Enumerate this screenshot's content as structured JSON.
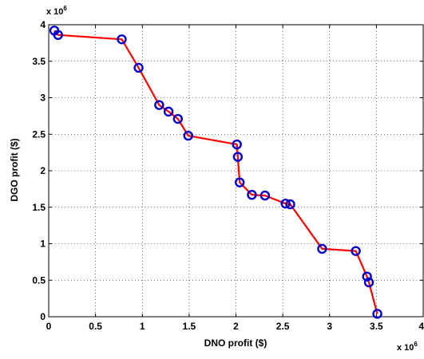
{
  "chart_data": {
    "type": "line",
    "title": "",
    "xlabel": "DNO profit ($)",
    "ylabel": "DGO profit ($)",
    "xlim": [
      0,
      4000000
    ],
    "ylim": [
      0,
      4000000
    ],
    "x_ticks": [
      0,
      500000,
      1000000,
      1500000,
      2000000,
      2500000,
      3000000,
      3500000,
      4000000
    ],
    "y_ticks": [
      0,
      500000,
      1000000,
      1500000,
      2000000,
      2500000,
      3000000,
      3500000,
      4000000
    ],
    "x_tick_labels": [
      "0",
      "0.5",
      "1",
      "1.5",
      "2",
      "2.5",
      "3",
      "3.5",
      "4"
    ],
    "y_tick_labels": [
      "0",
      "0.5",
      "1",
      "1.5",
      "2",
      "2.5",
      "3",
      "3.5",
      "4"
    ],
    "x_exponent": {
      "base": "x 10",
      "power": "6"
    },
    "y_exponent": {
      "base": "x 10",
      "power": "6"
    },
    "grid": true,
    "line_color": "#ff0000",
    "marker_color": "#0000cc",
    "series": [
      {
        "x": [
          60000,
          100000,
          780000,
          960000,
          1180000,
          1280000,
          1380000,
          1490000,
          2010000,
          2020000,
          2040000,
          2170000,
          2310000,
          2530000,
          2580000,
          2920000,
          3280000,
          3400000,
          3420000,
          3510000
        ],
        "y": [
          3920000,
          3860000,
          3800000,
          3410000,
          2900000,
          2810000,
          2710000,
          2480000,
          2360000,
          2190000,
          1840000,
          1670000,
          1660000,
          1550000,
          1540000,
          930000,
          900000,
          550000,
          470000,
          40000
        ]
      }
    ]
  }
}
